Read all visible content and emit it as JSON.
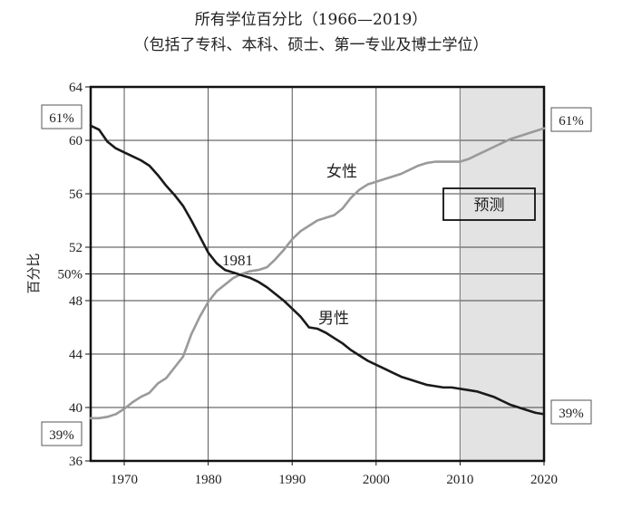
{
  "chart_data": {
    "type": "line",
    "title": "所有学位百分比（1966—2019）",
    "subtitle": "（包括了专科、本科、硕士、第一专业及博士学位）",
    "ylabel": "百分比",
    "xlabel": "",
    "xlim": [
      1966,
      2020
    ],
    "ylim": [
      36,
      64
    ],
    "x_ticks": [
      "1970",
      "1980",
      "1990",
      "2000",
      "2010",
      "2020"
    ],
    "y_ticks": [
      "36",
      "40",
      "44",
      "48",
      "52",
      "56",
      "60",
      "64"
    ],
    "grid": true,
    "extra_y_label": {
      "value": 50,
      "text": "50%"
    },
    "forecast": {
      "start": 2010,
      "end": 2020,
      "label": "预测"
    },
    "annotations": [
      {
        "text": "1981",
        "x": 1981,
        "y": 50.5
      },
      {
        "text": "女性",
        "series": "female"
      },
      {
        "text": "男性",
        "series": "male"
      }
    ],
    "end_labels": {
      "left_top": "61%",
      "left_bottom": "39%",
      "right_top": "61%",
      "right_bottom": "39%"
    },
    "series": [
      {
        "name": "女性",
        "color": "#9a9a9a",
        "x": [
          1966,
          1967,
          1968,
          1969,
          1970,
          1971,
          1972,
          1973,
          1974,
          1975,
          1976,
          1977,
          1978,
          1979,
          1980,
          1981,
          1982,
          1983,
          1984,
          1985,
          1986,
          1987,
          1988,
          1989,
          1990,
          1991,
          1992,
          1993,
          1994,
          1995,
          1996,
          1997,
          1998,
          1999,
          2000,
          2001,
          2002,
          2003,
          2004,
          2005,
          2006,
          2007,
          2008,
          2009,
          2010,
          2011,
          2012,
          2013,
          2014,
          2015,
          2016,
          2017,
          2018,
          2019,
          2020
        ],
        "values": [
          39.2,
          39.2,
          39.3,
          39.5,
          39.9,
          40.4,
          40.8,
          41.1,
          41.8,
          42.2,
          43.0,
          43.8,
          45.5,
          46.8,
          47.9,
          48.7,
          49.2,
          49.7,
          50.0,
          50.2,
          50.3,
          50.5,
          51.1,
          51.8,
          52.6,
          53.2,
          53.6,
          54.0,
          54.2,
          54.4,
          54.9,
          55.7,
          56.3,
          56.7,
          56.9,
          57.1,
          57.3,
          57.5,
          57.8,
          58.1,
          58.3,
          58.4,
          58.4,
          58.4,
          58.4,
          58.6,
          58.9,
          59.2,
          59.5,
          59.8,
          60.1,
          60.3,
          60.5,
          60.7,
          60.9
        ]
      },
      {
        "name": "男性",
        "color": "#1a1a1a",
        "x": [
          1966,
          1967,
          1968,
          1969,
          1970,
          1971,
          1972,
          1973,
          1974,
          1975,
          1976,
          1977,
          1978,
          1979,
          1980,
          1981,
          1982,
          1983,
          1984,
          1985,
          1986,
          1987,
          1988,
          1989,
          1990,
          1991,
          1992,
          1993,
          1994,
          1995,
          1996,
          1997,
          1998,
          1999,
          2000,
          2001,
          2002,
          2003,
          2004,
          2005,
          2006,
          2007,
          2008,
          2009,
          2010,
          2011,
          2012,
          2013,
          2014,
          2015,
          2016,
          2017,
          2018,
          2019,
          2020
        ],
        "values": [
          61.1,
          60.8,
          59.9,
          59.4,
          59.1,
          58.8,
          58.5,
          58.1,
          57.4,
          56.6,
          55.9,
          55.1,
          54.0,
          52.8,
          51.6,
          50.8,
          50.3,
          50.1,
          49.9,
          49.7,
          49.4,
          49.0,
          48.5,
          48.0,
          47.4,
          46.8,
          46.0,
          45.9,
          45.6,
          45.2,
          44.8,
          44.3,
          43.9,
          43.5,
          43.2,
          42.9,
          42.6,
          42.3,
          42.1,
          41.9,
          41.7,
          41.6,
          41.5,
          41.5,
          41.4,
          41.3,
          41.2,
          41.0,
          40.8,
          40.5,
          40.2,
          40.0,
          39.8,
          39.6,
          39.5
        ]
      }
    ]
  }
}
